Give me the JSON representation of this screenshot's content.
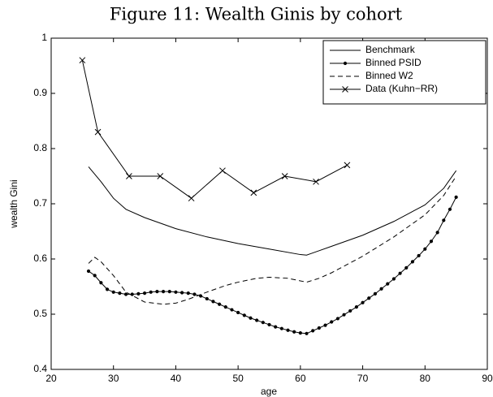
{
  "chart_data": {
    "type": "line",
    "title": "Figure 11: Wealth Ginis by cohort",
    "xlabel": "age",
    "ylabel": "wealth Gini",
    "xlim": [
      20,
      90
    ],
    "ylim": [
      0.4,
      1
    ],
    "xticks": [
      20,
      30,
      40,
      50,
      60,
      70,
      80,
      90
    ],
    "yticks": [
      0.4,
      0.5,
      0.6,
      0.7,
      0.8,
      0.9,
      1
    ],
    "legend": "upper right",
    "grid": false,
    "series": [
      {
        "name": "Benchmark",
        "color": "#000000",
        "dash": false,
        "marker": "none",
        "x": [
          26,
          28,
          30,
          32,
          35,
          40,
          45,
          50,
          55,
          60,
          61,
          63,
          65,
          70,
          75,
          80,
          83,
          85
        ],
        "values": [
          0.767,
          0.74,
          0.71,
          0.69,
          0.675,
          0.655,
          0.64,
          0.628,
          0.618,
          0.608,
          0.607,
          0.615,
          0.623,
          0.643,
          0.668,
          0.698,
          0.728,
          0.76
        ]
      },
      {
        "name": "Binned PSID",
        "color": "#000000",
        "dash": false,
        "marker": "dot",
        "x": [
          26,
          27,
          28,
          29,
          30,
          31,
          32,
          33,
          34,
          35,
          36,
          37,
          38,
          39,
          40,
          41,
          42,
          43,
          44,
          45,
          46,
          47,
          48,
          49,
          50,
          51,
          52,
          53,
          54,
          55,
          56,
          57,
          58,
          59,
          60,
          61,
          62,
          63,
          64,
          65,
          66,
          67,
          68,
          69,
          70,
          71,
          72,
          73,
          74,
          75,
          76,
          77,
          78,
          79,
          80,
          81,
          82,
          83,
          84,
          85
        ],
        "values": [
          0.578,
          0.57,
          0.557,
          0.545,
          0.54,
          0.538,
          0.536,
          0.536,
          0.537,
          0.538,
          0.54,
          0.541,
          0.541,
          0.541,
          0.54,
          0.539,
          0.538,
          0.536,
          0.533,
          0.528,
          0.523,
          0.518,
          0.513,
          0.508,
          0.503,
          0.498,
          0.493,
          0.489,
          0.485,
          0.481,
          0.477,
          0.474,
          0.471,
          0.468,
          0.466,
          0.465,
          0.47,
          0.475,
          0.48,
          0.486,
          0.492,
          0.499,
          0.506,
          0.513,
          0.521,
          0.529,
          0.537,
          0.546,
          0.555,
          0.564,
          0.574,
          0.584,
          0.595,
          0.606,
          0.618,
          0.632,
          0.648,
          0.67,
          0.69,
          0.712
        ]
      },
      {
        "name": "Binned W2",
        "color": "#000000",
        "dash": true,
        "marker": "none",
        "x": [
          26,
          27,
          28,
          30,
          32,
          35,
          38,
          40,
          42,
          45,
          48,
          50,
          53,
          55,
          58,
          61,
          63,
          65,
          70,
          75,
          80,
          83,
          85
        ],
        "values": [
          0.592,
          0.603,
          0.595,
          0.57,
          0.54,
          0.522,
          0.518,
          0.52,
          0.527,
          0.54,
          0.552,
          0.558,
          0.565,
          0.567,
          0.565,
          0.558,
          0.565,
          0.575,
          0.605,
          0.64,
          0.68,
          0.715,
          0.75
        ]
      },
      {
        "name": "Data (Kuhn−RR)",
        "color": "#000000",
        "dash": false,
        "marker": "x",
        "x": [
          25,
          27.5,
          32.5,
          37.5,
          42.5,
          47.5,
          52.5,
          57.5,
          62.5,
          67.5
        ],
        "values": [
          0.96,
          0.83,
          0.75,
          0.75,
          0.71,
          0.76,
          0.72,
          0.75,
          0.74,
          0.77
        ]
      }
    ]
  }
}
